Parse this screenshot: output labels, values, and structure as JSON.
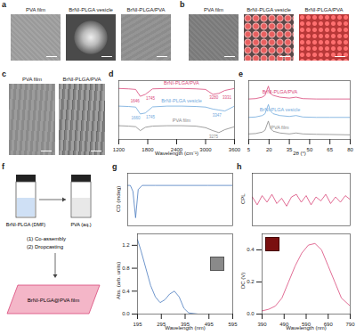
{
  "images": [
    {
      "panel": "a",
      "labels": [
        "PVA film",
        "BrNI-PLGA vesicle",
        "BrNI-PLGA/PVA"
      ]
    },
    {
      "panel": "b",
      "labels": [
        "PVA film",
        "BrNI-PLGA vesicle",
        "BrNI-PLGA/PVA"
      ]
    },
    {
      "panel": "c",
      "labels": [
        "PVA film",
        "BrNI-PLGA/PVA"
      ]
    }
  ],
  "schematic": {
    "panel": "f",
    "vial_left": "BrNI-PLGA (DMF)",
    "vial_right": "PVA (aq.)",
    "steps": [
      "(1) Co-assembly",
      "(2) Dropcasting"
    ],
    "product": "BrNI-PLGA@PVA film"
  },
  "chart_data": [
    {
      "panel": "d",
      "type": "line",
      "x_label": "Wavelength (cm⁻¹)",
      "x": [
        1200,
        1400,
        1550,
        1645,
        1750,
        1900,
        2200,
        2500,
        2800,
        3000,
        3150,
        3275,
        3400,
        3600
      ],
      "xlim": [
        1200,
        3600
      ],
      "xticks": [
        1200,
        1800,
        2400,
        3000,
        3600
      ],
      "ylim": [
        0,
        3
      ],
      "tick_labels": "x",
      "series": [
        {
          "name": "BrNI-PLGA/PVA",
          "color": "#d9477a",
          "values": [
            2.6,
            2.58,
            2.55,
            2.2,
            2.3,
            2.58,
            2.6,
            2.6,
            2.58,
            2.55,
            2.3,
            2.35,
            2.5,
            2.6
          ]
        },
        {
          "name": "BrNI-PLGA vesicle",
          "color": "#6fa8dc",
          "values": [
            1.7,
            1.68,
            1.65,
            1.3,
            1.35,
            1.66,
            1.7,
            1.7,
            1.68,
            1.65,
            1.55,
            1.5,
            1.45,
            1.7
          ]
        },
        {
          "name": "PVA film",
          "color": "#888888",
          "values": [
            0.7,
            0.68,
            0.65,
            0.45,
            0.62,
            0.68,
            0.7,
            0.7,
            0.68,
            0.6,
            0.45,
            0.35,
            0.5,
            0.65
          ]
        }
      ],
      "annotations": [
        {
          "text": "1646",
          "x": 1646,
          "series": "BrNI-PLGA/PVA"
        },
        {
          "text": "1745",
          "x": 1745,
          "series": "BrNI-PLGA/PVA"
        },
        {
          "text": "3280",
          "x": 3280,
          "series": "BrNI-PLGA/PVA"
        },
        {
          "text": "3331",
          "x": 3331,
          "series": "BrNI-PLGA/PVA"
        },
        {
          "text": "1660",
          "x": 1660,
          "series": "BrNI-PLGA vesicle"
        },
        {
          "text": "1745",
          "x": 1745,
          "series": "BrNI-PLGA vesicle"
        },
        {
          "text": "3347",
          "x": 3347,
          "series": "BrNI-PLGA vesicle"
        },
        {
          "text": "3275",
          "x": 3275,
          "series": "PVA film"
        }
      ]
    },
    {
      "panel": "e",
      "type": "line",
      "x_label": "2θ (°)",
      "x": [
        5,
        10,
        15,
        17,
        19.5,
        21,
        23,
        28,
        35,
        40,
        45,
        55,
        65,
        80
      ],
      "xlim": [
        5,
        80
      ],
      "xticks": [
        5,
        20,
        35,
        50,
        65,
        80
      ],
      "ylim": [
        0,
        3.2
      ],
      "tick_labels": "x",
      "series": [
        {
          "name": "BrNI-PLGA/PVA",
          "color": "#d9477a",
          "values": [
            2.2,
            2.22,
            2.3,
            2.4,
            2.9,
            2.5,
            2.4,
            2.3,
            2.25,
            2.3,
            2.22,
            2.2,
            2.2,
            2.2
          ]
        },
        {
          "name": "BrNI-PLGA vesicle",
          "color": "#6fa8dc",
          "values": [
            1.2,
            1.22,
            1.3,
            1.4,
            1.9,
            1.55,
            1.4,
            1.3,
            1.25,
            1.3,
            1.22,
            1.2,
            1.2,
            1.2
          ]
        },
        {
          "name": "PVA film",
          "color": "#888888",
          "values": [
            0.3,
            0.32,
            0.4,
            0.5,
            1.0,
            0.6,
            0.45,
            0.35,
            0.3,
            0.35,
            0.3,
            0.28,
            0.27,
            0.25
          ]
        }
      ]
    },
    {
      "panel": "g",
      "type": "line",
      "y_label": "CD (mdeg)",
      "x": [
        195,
        205,
        215,
        225,
        235,
        250,
        300,
        400,
        500,
        595
      ],
      "xlim": [
        195,
        595
      ],
      "ylim": [
        -2,
        0.6
      ],
      "tick_labels": false,
      "series": [
        {
          "color": "#4a7bbf",
          "values": [
            0,
            0,
            -0.3,
            -1.6,
            -0.2,
            0,
            0,
            0,
            0,
            0
          ]
        }
      ]
    },
    {
      "type": "line",
      "x_label": "Wavelength (nm)",
      "y_label": "Abs. (arb. units)",
      "x": [
        195,
        210,
        230,
        250,
        270,
        290,
        310,
        330,
        350,
        370,
        390,
        410,
        450,
        500,
        595
      ],
      "xlim": [
        195,
        595
      ],
      "xticks": [
        195,
        295,
        395,
        495,
        595
      ],
      "ylim": [
        0,
        1.4
      ],
      "yticks": [
        {
          "value": 0,
          "label": "0.0"
        },
        0.4,
        0.8,
        1.2
      ],
      "tick_labels": true,
      "series": [
        {
          "color": "#4a7bbf",
          "values": [
            1.3,
            1.1,
            0.8,
            0.5,
            0.3,
            0.2,
            0.25,
            0.35,
            0.4,
            0.3,
            0.1,
            0.02,
            0,
            0,
            0
          ]
        }
      ]
    },
    {
      "panel": "h",
      "type": "line",
      "y_label": "CPL",
      "x": [
        390,
        410,
        430,
        450,
        470,
        490,
        510,
        530,
        550,
        570,
        590,
        610,
        630,
        650,
        670,
        690,
        710,
        730,
        750,
        770,
        790
      ],
      "xlim": [
        390,
        790
      ],
      "ylim": [
        -1,
        1
      ],
      "tick_labels": false,
      "series": [
        {
          "color": "#d9477a",
          "values": [
            0.1,
            -0.2,
            0.15,
            -0.1,
            0.2,
            -0.15,
            0.05,
            -0.25,
            0.1,
            0.2,
            -0.1,
            0.15,
            -0.2,
            0.1,
            -0.05,
            0.2,
            -0.15,
            0.1,
            -0.1,
            0.15,
            0
          ]
        }
      ]
    },
    {
      "type": "line",
      "x_label": "Wavelength (nm)",
      "y_label": "DC (V)",
      "x": [
        390,
        420,
        450,
        480,
        510,
        540,
        570,
        600,
        630,
        660,
        690,
        720,
        750,
        790
      ],
      "xlim": [
        390,
        790
      ],
      "xticks": [
        390,
        490,
        590,
        690,
        790
      ],
      "ylim": [
        0,
        0.5
      ],
      "yticks": [
        {
          "value": 0,
          "label": "0.0"
        },
        0.2,
        0.4
      ],
      "tick_labels": true,
      "series": [
        {
          "color": "#d9477a",
          "values": [
            0.02,
            0.03,
            0.05,
            0.1,
            0.2,
            0.3,
            0.38,
            0.43,
            0.44,
            0.4,
            0.3,
            0.2,
            0.1,
            0.05
          ]
        }
      ]
    }
  ]
}
